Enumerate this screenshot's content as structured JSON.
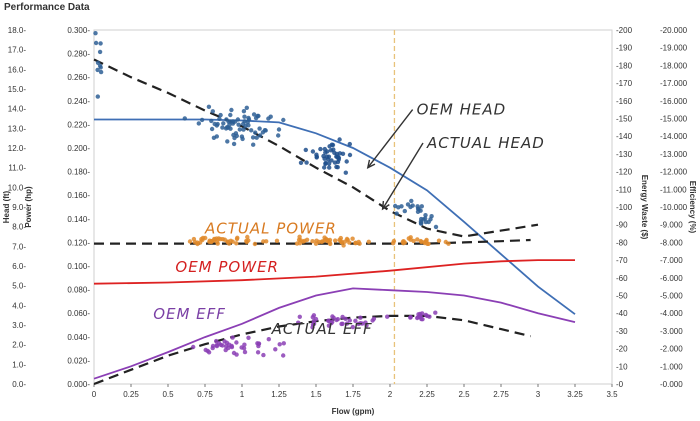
{
  "page": {
    "title": "Performance Data"
  },
  "chart_data": {
    "type": "scatter",
    "title": "Performance Data",
    "xlabel": "Flow (gpm)",
    "xlim": [
      0,
      3.5
    ],
    "x_ticks": [
      "0",
      "0.25",
      "0.5",
      "0.75",
      "1",
      "1.25",
      "1.5",
      "1.75",
      "2",
      "2.25",
      "2.5",
      "2.75",
      "3",
      "3.25",
      "3.5"
    ],
    "y_axes": [
      {
        "label": "Head (ft)",
        "side": "left-outer",
        "lim": [
          0,
          18
        ],
        "ticks": [
          "0.0",
          "1.0",
          "2.0",
          "3.0",
          "4.0",
          "5.0",
          "6.0",
          "7.0",
          "8.0",
          "9.0",
          "10.0",
          "11.0",
          "12.0",
          "13.0",
          "14.0",
          "15.0",
          "16.0",
          "17.0",
          "18.0"
        ]
      },
      {
        "label": "Power (hp)",
        "side": "left-inner",
        "lim": [
          0,
          0.3
        ],
        "ticks": [
          "0.000",
          "0.020",
          "0.040",
          "0.060",
          "0.080",
          "0.100",
          "0.120",
          "0.140",
          "0.160",
          "0.180",
          "0.200",
          "0.220",
          "0.240",
          "0.260",
          "0.280",
          "0.300"
        ]
      },
      {
        "label": "Energy Waste ($)",
        "side": "right-inner",
        "lim": [
          0,
          200
        ],
        "ticks": [
          "0",
          "10",
          "20",
          "30",
          "40",
          "50",
          "60",
          "70",
          "80",
          "90",
          "100",
          "110",
          "120",
          "130",
          "140",
          "150",
          "160",
          "170",
          "180",
          "190",
          "200"
        ]
      },
      {
        "label": "Efficiency (%)",
        "side": "right-outer",
        "lim": [
          0,
          20
        ],
        "ticks": [
          "0.000",
          "1.000",
          "2.000",
          "3.000",
          "4.000",
          "5.000",
          "6.000",
          "7.000",
          "8.000",
          "9.000",
          "10.000",
          "11.000",
          "12.000",
          "13.000",
          "14.000",
          "15.000",
          "16.000",
          "17.000",
          "18.000",
          "19.000",
          "20.000"
        ]
      }
    ],
    "vertical_marker": {
      "x": 2.03,
      "color": "#e8c27a"
    },
    "series": [
      {
        "style": "line",
        "axis": 0,
        "color": "#3f6fb5",
        "x": [
          0,
          0.25,
          0.5,
          0.75,
          1.0,
          1.25,
          1.5,
          1.75,
          2.0,
          2.25,
          2.5,
          2.75,
          3.0,
          3.25
        ],
        "y": [
          13.45,
          13.45,
          13.45,
          13.45,
          13.4,
          13.3,
          12.75,
          12.0,
          11.0,
          9.85,
          8.25,
          6.6,
          4.95,
          3.55
        ]
      },
      {
        "style": "dashed",
        "axis": 0,
        "color": "#222222",
        "x": [
          0,
          0.25,
          0.5,
          0.75,
          1.0,
          1.25,
          1.5,
          1.75,
          2.0,
          2.25,
          2.5,
          2.75,
          3.0
        ],
        "y": [
          16.5,
          15.6,
          14.8,
          13.9,
          13.1,
          12.1,
          11.0,
          10.0,
          8.8,
          7.9,
          7.5,
          7.8,
          8.1
        ]
      },
      {
        "style": "line",
        "axis": 1,
        "color": "#dd2222",
        "x": [
          0,
          0.5,
          1.0,
          1.5,
          2.0,
          2.5,
          2.75,
          3.0,
          3.25
        ],
        "y": [
          0.085,
          0.086,
          0.088,
          0.091,
          0.096,
          0.102,
          0.104,
          0.105,
          0.105
        ]
      },
      {
        "style": "dashed",
        "axis": 1,
        "color": "#222222",
        "x": [
          0,
          0.25,
          0.5,
          0.75,
          1.0,
          1.25,
          1.5,
          1.75,
          2.0,
          2.25,
          2.5,
          2.75,
          2.95
        ],
        "y": [
          0.119,
          0.119,
          0.119,
          0.119,
          0.119,
          0.119,
          0.119,
          0.119,
          0.119,
          0.119,
          0.12,
          0.121,
          0.122
        ]
      },
      {
        "style": "line",
        "axis": 3,
        "color": "#8b3fb5",
        "x": [
          0,
          0.25,
          0.5,
          0.75,
          1.0,
          1.25,
          1.5,
          1.75,
          2.0,
          2.25,
          2.5,
          2.75,
          3.0,
          3.25
        ],
        "y": [
          0.3,
          1.0,
          1.8,
          2.65,
          3.4,
          4.3,
          5.0,
          5.4,
          5.3,
          5.2,
          5.0,
          4.6,
          4.0,
          3.5
        ]
      },
      {
        "style": "dashed",
        "axis": 3,
        "color": "#222222",
        "x": [
          0,
          0.25,
          0.5,
          0.75,
          1.0,
          1.25,
          1.5,
          1.75,
          2.0,
          2.25,
          2.5,
          2.75,
          2.95
        ],
        "y": [
          0.0,
          0.8,
          1.6,
          2.25,
          2.8,
          3.25,
          3.55,
          3.75,
          3.85,
          3.85,
          3.6,
          3.1,
          2.7
        ]
      },
      {
        "style": "points",
        "axis": 0,
        "color": "#2e5f95",
        "cx": 0.03,
        "cy": 16.5,
        "sx": 0.015,
        "sy": 1.2,
        "n": 10
      },
      {
        "style": "points",
        "axis": 0,
        "color": "#2e5f95",
        "cx": 0.97,
        "cy": 13.1,
        "sx": 0.14,
        "sy": 0.45,
        "n": 70
      },
      {
        "style": "points",
        "axis": 0,
        "color": "#1f4f8c",
        "cx": 1.6,
        "cy": 11.6,
        "sx": 0.08,
        "sy": 0.35,
        "n": 45
      },
      {
        "style": "points",
        "axis": 0,
        "color": "#2e5f95",
        "cx": 2.12,
        "cy": 9.0,
        "sx": 0.07,
        "sy": 0.15,
        "n": 15
      },
      {
        "style": "points",
        "axis": 0,
        "color": "#2e5f95",
        "cx": 2.25,
        "cy": 8.3,
        "sx": 0.04,
        "sy": 0.15,
        "n": 12
      },
      {
        "style": "points",
        "axis": 1,
        "color": "#e0892a",
        "cx": 0.9,
        "cy": 0.121,
        "sx": 0.13,
        "sy": 0.0015,
        "n": 40
      },
      {
        "style": "points",
        "axis": 1,
        "color": "#e0892a",
        "cx": 1.6,
        "cy": 0.121,
        "sx": 0.15,
        "sy": 0.0015,
        "n": 40
      },
      {
        "style": "points",
        "axis": 1,
        "color": "#e0892a",
        "cx": 2.2,
        "cy": 0.121,
        "sx": 0.12,
        "sy": 0.0015,
        "n": 22
      },
      {
        "style": "points",
        "axis": 3,
        "color": "#8b3fb5",
        "cx": 0.95,
        "cy": 2.1,
        "sx": 0.16,
        "sy": 0.25,
        "n": 40
      },
      {
        "style": "points",
        "axis": 3,
        "color": "#8b3fb5",
        "cx": 1.6,
        "cy": 3.5,
        "sx": 0.16,
        "sy": 0.2,
        "n": 35
      },
      {
        "style": "points",
        "axis": 3,
        "color": "#8b3fb5",
        "cx": 2.2,
        "cy": 3.8,
        "sx": 0.07,
        "sy": 0.15,
        "n": 15
      }
    ],
    "annotations": [
      {
        "text": "OEM HEAD",
        "x": 2.18,
        "y": 13.7,
        "color": "#333333",
        "arrow_to": [
          1.85,
          11.0
        ]
      },
      {
        "text": "ACTUAL HEAD",
        "x": 2.25,
        "y": 12.0,
        "color": "#333333",
        "arrow_to": [
          1.95,
          8.9
        ]
      },
      {
        "text": "ACTUAL POWER",
        "x": 0.75,
        "y": 7.65,
        "color": "#d87a20"
      },
      {
        "text": "OEM POWER",
        "x": 0.55,
        "y": 5.7,
        "color": "#d42020"
      },
      {
        "text": "OEM EFF",
        "x": 0.4,
        "y": 3.3,
        "color": "#7a3fa5"
      },
      {
        "text": "ACTUAL EFF",
        "x": 1.2,
        "y": 2.55,
        "color": "#333333"
      }
    ]
  }
}
